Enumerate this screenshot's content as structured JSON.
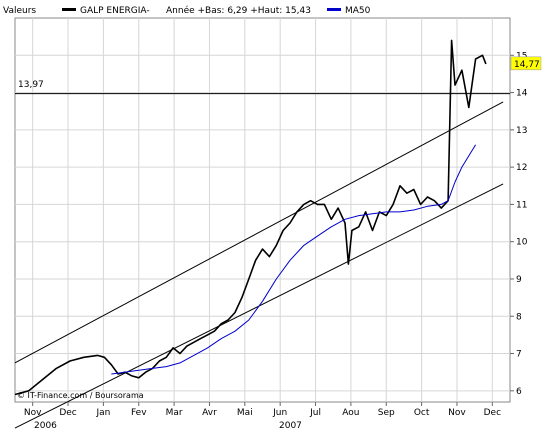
{
  "header": {
    "label_valeurs": "Valeurs",
    "series_name": "GALP ENERGIA-",
    "annee_text": "Année +Bas: 6,29 +Haut: 15,43",
    "ma_name": "MA50"
  },
  "copyright": "© IT-Finance.com / Boursorama",
  "colors": {
    "price": "#000000",
    "ma": "#0000cc",
    "grid": "#d6d6d6",
    "badge": "#ffff00"
  },
  "chart_data": {
    "type": "line",
    "y_ticks": [
      "6",
      "7",
      "8",
      "9",
      "10",
      "11",
      "12",
      "13",
      "14",
      "15"
    ],
    "ylim": [
      5.7,
      16.0
    ],
    "x_month_labels": [
      "Nov",
      "Dec",
      "Jan",
      "Fev",
      "Mar",
      "Avr",
      "Mai",
      "Jun",
      "Jul",
      "Aou",
      "Sep",
      "Oct",
      "Nov",
      "Dec"
    ],
    "x_year_labels": [
      "2006",
      "2007"
    ],
    "reference_line": {
      "value": 13.97,
      "label": "13,97"
    },
    "last_value_label": "14,77",
    "last_value": 14.77,
    "grid": true,
    "legend": "top",
    "series": [
      {
        "name": "GALP ENERGIA-",
        "points": [
          [
            0,
            5.9
          ],
          [
            2,
            6.0
          ],
          [
            4,
            6.3
          ],
          [
            6,
            6.6
          ],
          [
            8,
            6.8
          ],
          [
            10,
            6.9
          ],
          [
            12,
            6.95
          ],
          [
            13,
            6.9
          ],
          [
            14,
            6.7
          ],
          [
            15,
            6.45
          ],
          [
            16,
            6.5
          ],
          [
            17,
            6.4
          ],
          [
            18,
            6.35
          ],
          [
            19,
            6.5
          ],
          [
            20,
            6.6
          ],
          [
            21,
            6.8
          ],
          [
            22,
            6.9
          ],
          [
            23,
            7.15
          ],
          [
            24,
            7.0
          ],
          [
            25,
            7.2
          ],
          [
            26,
            7.3
          ],
          [
            27,
            7.4
          ],
          [
            28,
            7.5
          ],
          [
            29,
            7.6
          ],
          [
            30,
            7.8
          ],
          [
            31,
            7.9
          ],
          [
            32,
            8.1
          ],
          [
            33,
            8.5
          ],
          [
            34,
            9.0
          ],
          [
            35,
            9.5
          ],
          [
            36,
            9.8
          ],
          [
            37,
            9.6
          ],
          [
            38,
            9.9
          ],
          [
            39,
            10.3
          ],
          [
            40,
            10.5
          ],
          [
            41,
            10.8
          ],
          [
            42,
            11.0
          ],
          [
            43,
            11.1
          ],
          [
            44,
            11.0
          ],
          [
            45,
            11.0
          ],
          [
            46,
            10.6
          ],
          [
            47,
            10.9
          ],
          [
            48,
            10.5
          ],
          [
            48.5,
            9.4
          ],
          [
            49,
            10.3
          ],
          [
            50,
            10.4
          ],
          [
            51,
            10.8
          ],
          [
            52,
            10.3
          ],
          [
            53,
            10.8
          ],
          [
            54,
            10.7
          ],
          [
            55,
            11.0
          ],
          [
            56,
            11.5
          ],
          [
            57,
            11.3
          ],
          [
            58,
            11.4
          ],
          [
            59,
            11.0
          ],
          [
            60,
            11.2
          ],
          [
            61,
            11.1
          ],
          [
            62,
            10.9
          ],
          [
            63,
            11.1
          ],
          [
            63.5,
            15.4
          ],
          [
            64,
            14.2
          ],
          [
            65,
            14.6
          ],
          [
            66,
            13.6
          ],
          [
            67,
            14.9
          ],
          [
            68,
            15.0
          ],
          [
            68.5,
            14.77
          ]
        ]
      },
      {
        "name": "MA50",
        "points": [
          [
            14,
            6.45
          ],
          [
            16,
            6.5
          ],
          [
            18,
            6.55
          ],
          [
            20,
            6.6
          ],
          [
            22,
            6.65
          ],
          [
            24,
            6.75
          ],
          [
            26,
            6.95
          ],
          [
            28,
            7.15
          ],
          [
            30,
            7.4
          ],
          [
            32,
            7.6
          ],
          [
            34,
            7.9
          ],
          [
            36,
            8.4
          ],
          [
            38,
            9.0
          ],
          [
            40,
            9.5
          ],
          [
            42,
            9.9
          ],
          [
            44,
            10.15
          ],
          [
            46,
            10.4
          ],
          [
            48,
            10.6
          ],
          [
            50,
            10.7
          ],
          [
            52,
            10.75
          ],
          [
            54,
            10.8
          ],
          [
            56,
            10.8
          ],
          [
            58,
            10.85
          ],
          [
            60,
            10.95
          ],
          [
            62,
            11.0
          ],
          [
            63,
            11.1
          ],
          [
            64,
            11.6
          ],
          [
            65,
            12.0
          ],
          [
            66,
            12.3
          ],
          [
            67,
            12.6
          ]
        ]
      }
    ],
    "channel_lines": [
      {
        "from": [
          0,
          6.75
        ],
        "to": [
          71,
          13.75
        ]
      },
      {
        "from": [
          0,
          5.0
        ],
        "to": [
          71,
          11.55
        ]
      }
    ]
  }
}
